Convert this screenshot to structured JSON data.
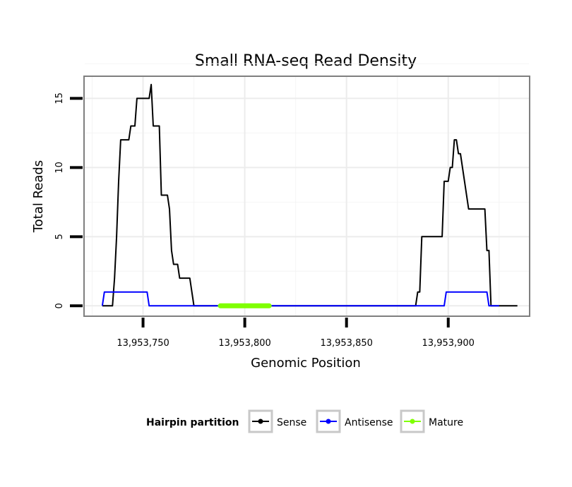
{
  "chart_data": {
    "type": "line",
    "title": "Small RNA-seq Read Density",
    "xlabel": "Genomic Position",
    "ylabel": "Total Reads",
    "xlim": [
      13953721,
      13953940
    ],
    "ylim": [
      -0.75,
      16.6
    ],
    "x_ticks": [
      13953750,
      13953800,
      13953850,
      13953900
    ],
    "x_tick_labels": [
      "13,953,750",
      "13,953,800",
      "13,953,850",
      "13,953,900"
    ],
    "y_ticks": [
      0,
      5,
      10,
      15
    ],
    "y_tick_labels": [
      "0",
      "5",
      "10",
      "15"
    ],
    "grid": true,
    "legend": {
      "title": "Hairpin partition",
      "position": "bottom",
      "entries": [
        {
          "label": "Sense",
          "color": "#000000"
        },
        {
          "label": "Antisense",
          "color": "#0000ff"
        },
        {
          "label": "Mature",
          "color": "#7fff00"
        }
      ]
    },
    "series": [
      {
        "name": "Sense",
        "color": "#000000",
        "points": [
          [
            13953730,
            0
          ],
          [
            13953735,
            0
          ],
          [
            13953736,
            2
          ],
          [
            13953737,
            5
          ],
          [
            13953738,
            9
          ],
          [
            13953739,
            12
          ],
          [
            13953743,
            12
          ],
          [
            13953744,
            13
          ],
          [
            13953746,
            13
          ],
          [
            13953747,
            15
          ],
          [
            13953753,
            15
          ],
          [
            13953754,
            16
          ],
          [
            13953755,
            13
          ],
          [
            13953758,
            13
          ],
          [
            13953759,
            8
          ],
          [
            13953762,
            8
          ],
          [
            13953763,
            7
          ],
          [
            13953764,
            4
          ],
          [
            13953765,
            3
          ],
          [
            13953767,
            3
          ],
          [
            13953768,
            2
          ],
          [
            13953773,
            2
          ],
          [
            13953775,
            0
          ],
          [
            13953884,
            0
          ],
          [
            13953885,
            1
          ],
          [
            13953886,
            1
          ],
          [
            13953887,
            5
          ],
          [
            13953897,
            5
          ],
          [
            13953898,
            9
          ],
          [
            13953900,
            9
          ],
          [
            13953901,
            10
          ],
          [
            13953902,
            10
          ],
          [
            13953903,
            12
          ],
          [
            13953904,
            12
          ],
          [
            13953905,
            11
          ],
          [
            13953906,
            11
          ],
          [
            13953907,
            10
          ],
          [
            13953908,
            9
          ],
          [
            13953909,
            8
          ],
          [
            13953910,
            7
          ],
          [
            13953918,
            7
          ],
          [
            13953919,
            4
          ],
          [
            13953920,
            4
          ],
          [
            13953921,
            0
          ],
          [
            13953934,
            0
          ]
        ]
      },
      {
        "name": "Antisense",
        "color": "#0000ff",
        "points": [
          [
            13953730,
            0
          ],
          [
            13953731,
            1
          ],
          [
            13953752,
            1
          ],
          [
            13953753,
            0
          ],
          [
            13953898,
            0
          ],
          [
            13953899,
            1
          ],
          [
            13953919,
            1
          ],
          [
            13953920,
            0
          ],
          [
            13953925,
            0
          ]
        ]
      },
      {
        "name": "Mature",
        "color": "#7fff00",
        "points": [
          [
            13953788,
            0
          ],
          [
            13953812,
            0
          ]
        ]
      }
    ]
  }
}
